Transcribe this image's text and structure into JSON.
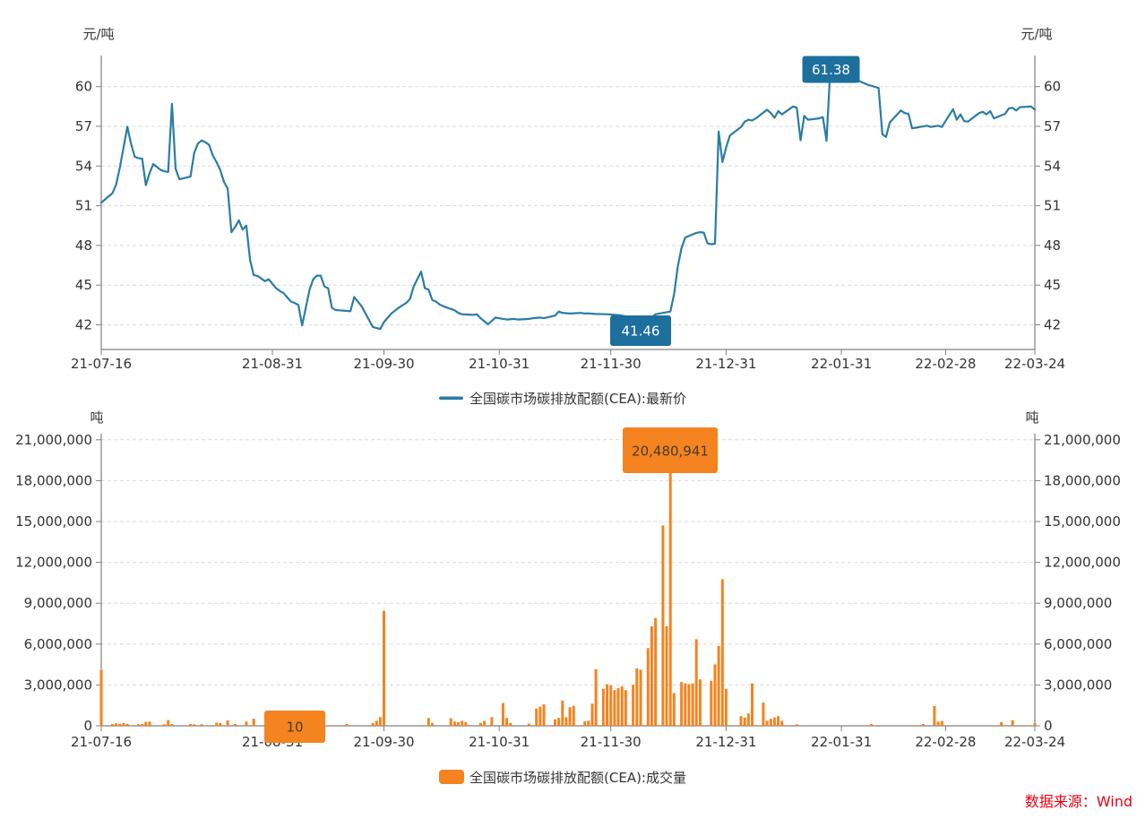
{
  "source_note": "数据来源：Wind",
  "colors": {
    "line": "#2b7ca6",
    "bar": "#f5831f",
    "callout_blue": "#1d6f9e",
    "callout_blue_text": "#ffffff",
    "callout_orange": "#f5831f",
    "callout_orange_text": "#443d33",
    "grid": "#dcdcdc",
    "axis": "#808080",
    "text": "#333333",
    "source": "#e60012"
  },
  "chart_data": [
    {
      "type": "line",
      "legend": "全国碳市场碳排放配额(CEA):最新价",
      "unit": "元/吨",
      "ylim": [
        40.1,
        62.0
      ],
      "grid": "horizontal-dashed",
      "legend_position": "bottom-center",
      "max_label": "61.38",
      "min_label": "41.46",
      "max_point": {
        "day": 196,
        "date": "22-01-28",
        "value": 61.38
      },
      "min_point": {
        "day": 145,
        "date": "21-12-08",
        "value": 41.46
      },
      "y_ticks": [
        {
          "v": 42,
          "label": "42"
        },
        {
          "v": 45,
          "label": "45"
        },
        {
          "v": 48,
          "label": "48"
        },
        {
          "v": 51,
          "label": "51"
        },
        {
          "v": 54,
          "label": "54"
        },
        {
          "v": 57,
          "label": "57"
        },
        {
          "v": 60,
          "label": "60"
        }
      ],
      "x_ticks": [
        {
          "d": 0,
          "label": "21-07-16"
        },
        {
          "d": 46,
          "label": "21-08-31"
        },
        {
          "d": 76,
          "label": "21-09-30"
        },
        {
          "d": 107,
          "label": "21-10-31"
        },
        {
          "d": 137,
          "label": "21-11-30"
        },
        {
          "d": 168,
          "label": "21-12-31"
        },
        {
          "d": 199,
          "label": "22-01-31"
        },
        {
          "d": 227,
          "label": "22-02-28"
        },
        {
          "d": 251,
          "label": "22-03-24"
        }
      ],
      "points": [
        [
          0,
          51.23
        ],
        [
          3,
          51.95
        ],
        [
          4,
          52.6
        ],
        [
          5,
          53.9
        ],
        [
          6,
          55.4
        ],
        [
          7,
          56.97
        ],
        [
          8,
          55.7
        ],
        [
          9,
          54.7
        ],
        [
          10,
          54.6
        ],
        [
          11,
          54.55
        ],
        [
          12,
          52.56
        ],
        [
          13,
          53.47
        ],
        [
          14,
          54.15
        ],
        [
          16,
          53.7
        ],
        [
          17,
          53.6
        ],
        [
          18,
          53.55
        ],
        [
          19,
          58.7
        ],
        [
          20,
          53.8
        ],
        [
          21,
          53.0
        ],
        [
          24,
          53.2
        ],
        [
          25,
          55.0
        ],
        [
          26,
          55.7
        ],
        [
          27,
          55.94
        ],
        [
          28,
          55.8
        ],
        [
          29,
          55.6
        ],
        [
          30,
          54.8
        ],
        [
          31,
          54.3
        ],
        [
          32,
          53.7
        ],
        [
          33,
          52.8
        ],
        [
          34,
          52.3
        ],
        [
          35,
          49.0
        ],
        [
          36,
          49.4
        ],
        [
          37,
          49.9
        ],
        [
          38,
          49.2
        ],
        [
          39,
          49.5
        ],
        [
          40,
          46.9
        ],
        [
          41,
          45.75
        ],
        [
          42,
          45.7
        ],
        [
          44,
          45.3
        ],
        [
          45,
          45.45
        ],
        [
          47,
          44.77
        ],
        [
          48,
          44.55
        ],
        [
          49,
          44.4
        ],
        [
          51,
          43.76
        ],
        [
          52,
          43.65
        ],
        [
          53,
          43.5
        ],
        [
          54,
          41.95
        ],
        [
          56,
          44.66
        ],
        [
          57,
          45.45
        ],
        [
          58,
          45.72
        ],
        [
          59,
          45.72
        ],
        [
          60,
          44.9
        ],
        [
          61,
          44.77
        ],
        [
          62,
          43.3
        ],
        [
          63,
          43.12
        ],
        [
          65,
          43.08
        ],
        [
          67,
          43.03
        ],
        [
          68,
          44.1
        ],
        [
          70,
          43.4
        ],
        [
          73,
          41.84
        ],
        [
          75,
          41.68
        ],
        [
          76,
          42.2
        ],
        [
          78,
          42.85
        ],
        [
          80,
          43.3
        ],
        [
          82,
          43.65
        ],
        [
          83,
          43.95
        ],
        [
          84,
          44.9
        ],
        [
          86,
          46.02
        ],
        [
          87,
          44.77
        ],
        [
          88,
          44.66
        ],
        [
          89,
          43.87
        ],
        [
          90,
          43.76
        ],
        [
          91,
          43.53
        ],
        [
          92,
          43.4
        ],
        [
          94,
          43.2
        ],
        [
          95,
          43.1
        ],
        [
          96,
          42.9
        ],
        [
          97,
          42.8
        ],
        [
          100,
          42.75
        ],
        [
          101,
          42.8
        ],
        [
          102,
          42.5
        ],
        [
          104,
          42.04
        ],
        [
          105,
          42.3
        ],
        [
          106,
          42.55
        ],
        [
          108,
          42.45
        ],
        [
          109,
          42.4
        ],
        [
          111,
          42.45
        ],
        [
          112,
          42.4
        ],
        [
          115,
          42.45
        ],
        [
          116,
          42.5
        ],
        [
          118,
          42.55
        ],
        [
          119,
          42.5
        ],
        [
          122,
          42.7
        ],
        [
          123,
          43.0
        ],
        [
          124,
          42.9
        ],
        [
          125,
          42.88
        ],
        [
          126,
          42.85
        ],
        [
          129,
          42.9
        ],
        [
          130,
          42.85
        ],
        [
          131,
          42.87
        ],
        [
          132,
          42.84
        ],
        [
          133,
          42.82
        ],
        [
          136,
          42.8
        ],
        [
          137,
          42.78
        ],
        [
          138,
          42.76
        ],
        [
          139,
          42.74
        ],
        [
          140,
          42.7
        ],
        [
          143,
          42.5
        ],
        [
          144,
          42.1
        ],
        [
          145,
          41.46
        ],
        [
          146,
          41.8
        ],
        [
          147,
          42.2
        ],
        [
          148,
          42.55
        ],
        [
          149,
          42.8
        ],
        [
          150,
          42.85
        ],
        [
          153,
          43.0
        ],
        [
          154,
          44.3
        ],
        [
          155,
          46.4
        ],
        [
          156,
          47.8
        ],
        [
          157,
          48.6
        ],
        [
          160,
          48.95
        ],
        [
          161,
          49.0
        ],
        [
          162,
          48.97
        ],
        [
          163,
          48.15
        ],
        [
          164,
          48.1
        ],
        [
          165,
          48.12
        ],
        [
          166,
          56.61
        ],
        [
          167,
          54.3
        ],
        [
          168,
          55.4
        ],
        [
          169,
          56.3
        ],
        [
          172,
          56.95
        ],
        [
          173,
          57.35
        ],
        [
          174,
          57.5
        ],
        [
          175,
          57.45
        ],
        [
          176,
          57.6
        ],
        [
          179,
          58.25
        ],
        [
          180,
          58.0
        ],
        [
          181,
          57.65
        ],
        [
          182,
          58.15
        ],
        [
          183,
          57.9
        ],
        [
          186,
          58.5
        ],
        [
          187,
          58.4
        ],
        [
          188,
          55.95
        ],
        [
          189,
          57.8
        ],
        [
          190,
          57.5
        ],
        [
          193,
          57.6
        ],
        [
          194,
          57.7
        ],
        [
          195,
          55.9
        ],
        [
          196,
          61.38
        ],
        [
          206,
          60.15
        ],
        [
          209,
          59.9
        ],
        [
          210,
          56.4
        ],
        [
          211,
          56.2
        ],
        [
          212,
          57.3
        ],
        [
          215,
          58.2
        ],
        [
          216,
          58.0
        ],
        [
          217,
          57.95
        ],
        [
          218,
          56.85
        ],
        [
          219,
          56.9
        ],
        [
          222,
          57.05
        ],
        [
          223,
          56.95
        ],
        [
          224,
          57.0
        ],
        [
          225,
          57.05
        ],
        [
          226,
          56.95
        ],
        [
          229,
          58.3
        ],
        [
          230,
          57.5
        ],
        [
          231,
          57.9
        ],
        [
          232,
          57.4
        ],
        [
          233,
          57.35
        ],
        [
          236,
          58.0
        ],
        [
          237,
          58.1
        ],
        [
          238,
          57.9
        ],
        [
          239,
          58.15
        ],
        [
          240,
          57.6
        ],
        [
          243,
          57.95
        ],
        [
          244,
          58.35
        ],
        [
          245,
          58.4
        ],
        [
          246,
          58.2
        ],
        [
          247,
          58.45
        ],
        [
          250,
          58.5
        ],
        [
          251,
          58.26
        ]
      ]
    },
    {
      "type": "bar",
      "legend": "全国碳市场碳排放配额(CEA):成交量",
      "unit": "吨",
      "ylim": [
        0,
        21400000
      ],
      "grid": "horizontal-dashed",
      "legend_position": "bottom-center",
      "max_label": "20,480,941",
      "min_label": "10",
      "max_point": {
        "day": 153,
        "date": "21-12-16",
        "value": 20480941
      },
      "min_point": {
        "day": 52,
        "date": "21-09-06",
        "value": 10
      },
      "y_ticks": [
        {
          "v": 0,
          "label": "0"
        },
        {
          "v": 3000000,
          "label": "3,000,000"
        },
        {
          "v": 6000000,
          "label": "6,000,000"
        },
        {
          "v": 9000000,
          "label": "9,000,000"
        },
        {
          "v": 12000000,
          "label": "12,000,000"
        },
        {
          "v": 15000000,
          "label": "15,000,000"
        },
        {
          "v": 18000000,
          "label": "18,000,000"
        },
        {
          "v": 21000000,
          "label": "21,000,000"
        }
      ],
      "x_ticks": [
        {
          "d": 0,
          "label": "21-07-16"
        },
        {
          "d": 46,
          "label": "21-08-31"
        },
        {
          "d": 76,
          "label": "21-09-30"
        },
        {
          "d": 107,
          "label": "21-10-31"
        },
        {
          "d": 137,
          "label": "21-11-30"
        },
        {
          "d": 168,
          "label": "21-12-31"
        },
        {
          "d": 199,
          "label": "22-01-31"
        },
        {
          "d": 227,
          "label": "22-02-28"
        },
        {
          "d": 251,
          "label": "22-03-24"
        }
      ],
      "bars": [
        [
          0,
          4103953
        ],
        [
          3,
          140000
        ],
        [
          4,
          190000
        ],
        [
          5,
          160000
        ],
        [
          6,
          210000
        ],
        [
          7,
          150000
        ],
        [
          10,
          120000
        ],
        [
          11,
          130000
        ],
        [
          12,
          290000
        ],
        [
          13,
          310000
        ],
        [
          17,
          110000
        ],
        [
          18,
          430000
        ],
        [
          19,
          140000
        ],
        [
          24,
          130000
        ],
        [
          25,
          110000
        ],
        [
          27,
          120000
        ],
        [
          31,
          240000
        ],
        [
          32,
          210000
        ],
        [
          34,
          400000
        ],
        [
          36,
          130000
        ],
        [
          39,
          310000
        ],
        [
          41,
          520000
        ],
        [
          45,
          170000
        ],
        [
          46,
          90000
        ],
        [
          47,
          50000
        ],
        [
          52,
          10
        ],
        [
          55,
          50000
        ],
        [
          57,
          60000
        ],
        [
          62,
          40000
        ],
        [
          66,
          130000
        ],
        [
          73,
          200000
        ],
        [
          74,
          370000
        ],
        [
          75,
          640000
        ],
        [
          76,
          8440000
        ],
        [
          88,
          570000
        ],
        [
          89,
          210000
        ],
        [
          94,
          560000
        ],
        [
          95,
          310000
        ],
        [
          96,
          260000
        ],
        [
          97,
          370000
        ],
        [
          98,
          260000
        ],
        [
          102,
          220000
        ],
        [
          103,
          370000
        ],
        [
          105,
          630000
        ],
        [
          108,
          1670000
        ],
        [
          109,
          570000
        ],
        [
          110,
          210000
        ],
        [
          115,
          160000
        ],
        [
          117,
          1270000
        ],
        [
          118,
          1410000
        ],
        [
          119,
          1570000
        ],
        [
          122,
          470000
        ],
        [
          123,
          570000
        ],
        [
          124,
          1860000
        ],
        [
          125,
          630000
        ],
        [
          126,
          1370000
        ],
        [
          127,
          1470000
        ],
        [
          130,
          320000
        ],
        [
          131,
          370000
        ],
        [
          132,
          1620000
        ],
        [
          133,
          4160000
        ],
        [
          135,
          2720000
        ],
        [
          136,
          3060000
        ],
        [
          137,
          2960000
        ],
        [
          138,
          2620000
        ],
        [
          139,
          2760000
        ],
        [
          140,
          2910000
        ],
        [
          141,
          2620000
        ],
        [
          143,
          3010000
        ],
        [
          144,
          4210000
        ],
        [
          145,
          4110000
        ],
        [
          147,
          5710000
        ],
        [
          148,
          7310000
        ],
        [
          149,
          7910000
        ],
        [
          151,
          14710000
        ],
        [
          152,
          7310000
        ],
        [
          153,
          20480941
        ],
        [
          154,
          2410000
        ],
        [
          156,
          3210000
        ],
        [
          157,
          3110000
        ],
        [
          158,
          3060000
        ],
        [
          159,
          3110000
        ],
        [
          160,
          6360000
        ],
        [
          161,
          3410000
        ],
        [
          164,
          3310000
        ],
        [
          165,
          4510000
        ],
        [
          166,
          5860000
        ],
        [
          167,
          10760000
        ],
        [
          168,
          2710000
        ],
        [
          172,
          710000
        ],
        [
          173,
          610000
        ],
        [
          174,
          910000
        ],
        [
          175,
          3110000
        ],
        [
          178,
          1710000
        ],
        [
          179,
          360000
        ],
        [
          180,
          510000
        ],
        [
          181,
          610000
        ],
        [
          182,
          710000
        ],
        [
          183,
          360000
        ],
        [
          187,
          110000
        ],
        [
          207,
          130000
        ],
        [
          221,
          130000
        ],
        [
          224,
          1460000
        ],
        [
          225,
          310000
        ],
        [
          226,
          360000
        ],
        [
          242,
          260000
        ],
        [
          245,
          410000
        ],
        [
          251,
          190000
        ]
      ]
    }
  ]
}
